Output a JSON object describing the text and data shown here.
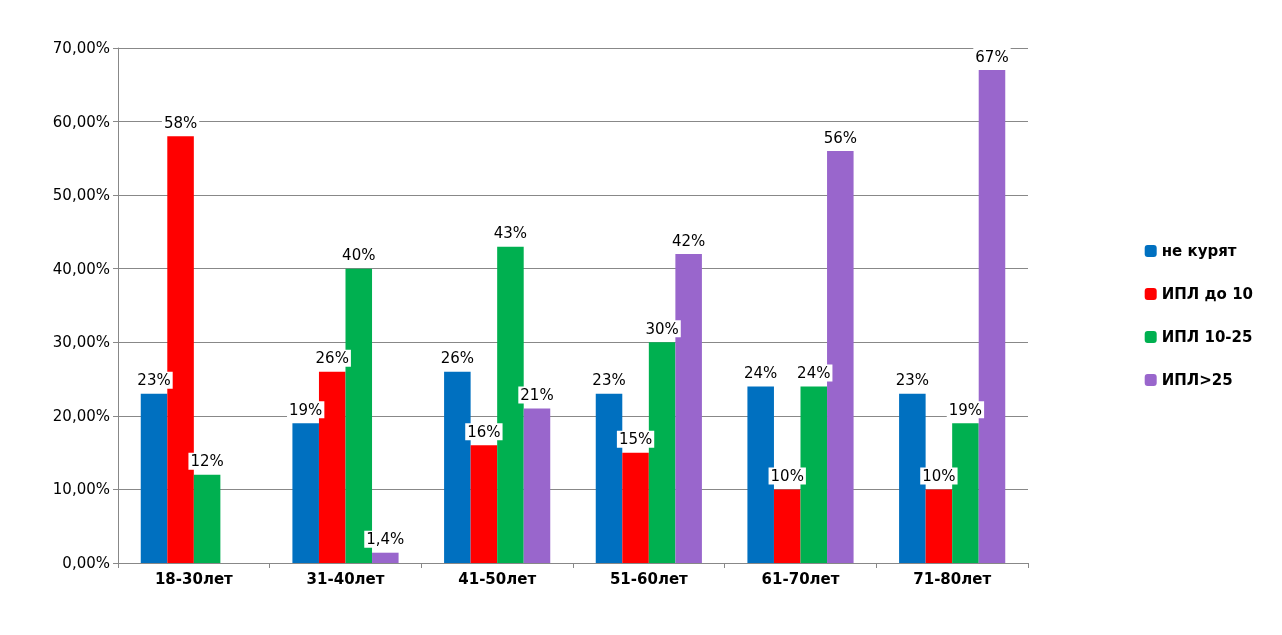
{
  "chart_data": {
    "type": "bar",
    "categories": [
      "18-30лет",
      "31-40лет",
      "41-50лет",
      "51-60лет",
      "61-70лет",
      "71-80лет"
    ],
    "series": [
      {
        "name": "не курят",
        "color": "#0070c0",
        "values": [
          23,
          19,
          26,
          23,
          24,
          23
        ],
        "value_labels": [
          "23%",
          "19%",
          "26%",
          "23%",
          "24%",
          "23%"
        ]
      },
      {
        "name": "ИПЛ до 10",
        "color": "#ff0000",
        "values": [
          58,
          26,
          16,
          15,
          10,
          10
        ],
        "value_labels": [
          "58%",
          "26%",
          "16%",
          "15%",
          "10%",
          "10%"
        ]
      },
      {
        "name": "ИПЛ 10-25",
        "color": "#00b050",
        "values": [
          12,
          40,
          43,
          30,
          24,
          19
        ],
        "value_labels": [
          "12%",
          "40%",
          "43%",
          "30%",
          "24%",
          "19%"
        ]
      },
      {
        "name": "ИПЛ>25",
        "color": "#9966cc",
        "values": [
          null,
          1.4,
          21,
          42,
          56,
          67
        ],
        "value_labels": [
          null,
          "1,4%",
          "21%",
          "42%",
          "56%",
          "67%"
        ]
      }
    ],
    "ylim": [
      0,
      70
    ],
    "yticks": [
      {
        "value": 0,
        "label": "0,00%"
      },
      {
        "value": 10,
        "label": "10,00%"
      },
      {
        "value": 20,
        "label": "20,00%"
      },
      {
        "value": 30,
        "label": "30,00%"
      },
      {
        "value": 40,
        "label": "40,00%"
      },
      {
        "value": 50,
        "label": "50,00%"
      },
      {
        "value": 60,
        "label": "60,00%"
      },
      {
        "value": 70,
        "label": "70,00%"
      }
    ],
    "grid": "y",
    "legend": "right"
  }
}
